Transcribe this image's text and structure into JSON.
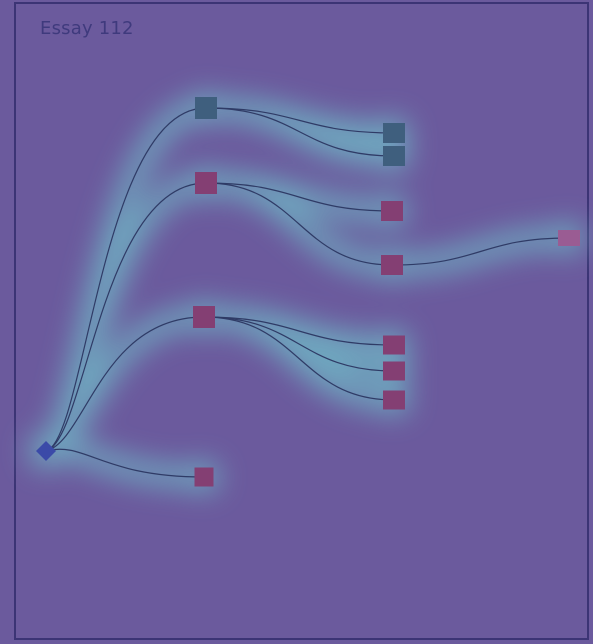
{
  "title": "Essay 112",
  "colors": {
    "background": "#6b5a9d",
    "frame": "#3c3475",
    "glow": "#6fb3c4",
    "edge": "#2f3b66",
    "root": "#3b4aa8",
    "node_teal": "#3f5f7e",
    "node_magenta": "#843f73",
    "node_faded": "#9a5c93"
  },
  "tree": {
    "root": {
      "id": "root",
      "shape": "diamond-icon",
      "color": "root"
    },
    "nodes": [
      {
        "id": "n1",
        "color": "node_teal",
        "children": [
          "n1a",
          "n1b"
        ]
      },
      {
        "id": "n2",
        "color": "node_magenta",
        "children": [
          "n2a",
          "n2b"
        ]
      },
      {
        "id": "n3",
        "color": "node_magenta",
        "children": [
          "n3a",
          "n3b",
          "n3c"
        ]
      },
      {
        "id": "n4",
        "color": "node_magenta",
        "children": []
      },
      {
        "id": "n1a",
        "color": "node_teal",
        "children": []
      },
      {
        "id": "n1b",
        "color": "node_teal",
        "children": []
      },
      {
        "id": "n2a",
        "color": "node_magenta",
        "children": []
      },
      {
        "id": "n2b",
        "color": "node_magenta",
        "children": [
          "n2b1"
        ]
      },
      {
        "id": "n2b1",
        "color": "node_faded",
        "children": []
      },
      {
        "id": "n3a",
        "color": "node_magenta",
        "children": []
      },
      {
        "id": "n3b",
        "color": "node_magenta",
        "children": []
      },
      {
        "id": "n3c",
        "color": "node_magenta",
        "children": []
      }
    ],
    "root_children": [
      "n1",
      "n2",
      "n3",
      "n4"
    ]
  }
}
